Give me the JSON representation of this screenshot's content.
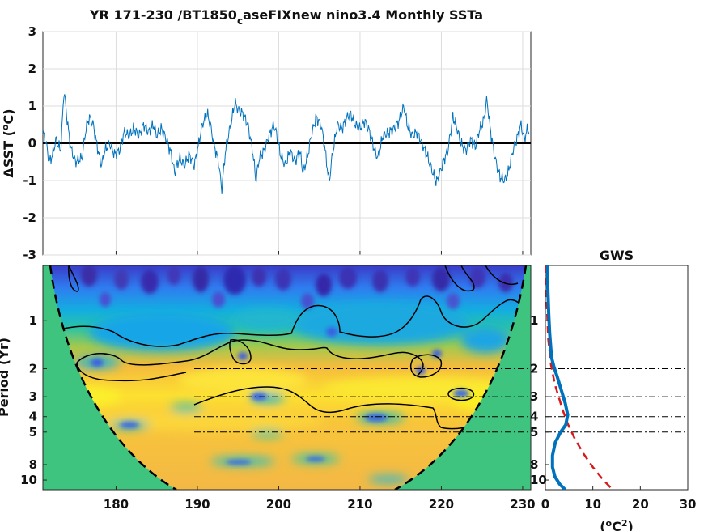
{
  "figure": {
    "title_main": "YR 171-230 /BT1850",
    "title_sub": "c",
    "title_rest": "aseFIXnew nino3.4 Monthly SSTa"
  },
  "chart_data": [
    {
      "type": "line",
      "name": "timeseries",
      "ylabel_main": "ΔSST (",
      "ylabel_sup": "o",
      "ylabel_end": "C)",
      "xlim": [
        171,
        231
      ],
      "ylim": [
        -3,
        3
      ],
      "yticks": [
        "3",
        "2",
        "1",
        "0",
        "-1",
        "-2",
        "-3"
      ],
      "grid": true,
      "line_color": "#0072BD",
      "zero_line_color": "#000000",
      "anchors": [
        [
          171.0,
          0.3
        ],
        [
          171.4,
          0.0
        ],
        [
          171.8,
          -0.5
        ],
        [
          172.2,
          -0.3
        ],
        [
          172.6,
          0.1
        ],
        [
          173.2,
          -0.2
        ],
        [
          173.6,
          1.45
        ],
        [
          174.0,
          0.6
        ],
        [
          174.4,
          -0.1
        ],
        [
          175.0,
          -0.5
        ],
        [
          175.8,
          -0.4
        ],
        [
          176.3,
          0.4
        ],
        [
          176.7,
          0.7
        ],
        [
          177.2,
          0.5
        ],
        [
          177.6,
          0.0
        ],
        [
          178.2,
          -0.6
        ],
        [
          178.6,
          -0.2
        ],
        [
          179.2,
          0.0
        ],
        [
          179.8,
          -0.3
        ],
        [
          180.4,
          -0.2
        ],
        [
          181.0,
          0.3
        ],
        [
          181.6,
          0.2
        ],
        [
          182.2,
          0.4
        ],
        [
          182.8,
          0.2
        ],
        [
          183.4,
          0.5
        ],
        [
          184.0,
          0.3
        ],
        [
          184.6,
          0.5
        ],
        [
          185.0,
          0.2
        ],
        [
          185.6,
          0.4
        ],
        [
          186.2,
          0.1
        ],
        [
          186.8,
          -0.3
        ],
        [
          187.2,
          -0.8
        ],
        [
          187.8,
          -0.4
        ],
        [
          188.4,
          -0.6
        ],
        [
          189.0,
          -0.3
        ],
        [
          189.6,
          -0.6
        ],
        [
          190.0,
          -0.2
        ],
        [
          190.6,
          0.5
        ],
        [
          191.2,
          0.8
        ],
        [
          191.6,
          0.5
        ],
        [
          192.0,
          0.0
        ],
        [
          192.6,
          -0.5
        ],
        [
          193.0,
          -1.25
        ],
        [
          193.4,
          -0.3
        ],
        [
          193.8,
          0.2
        ],
        [
          194.2,
          0.6
        ],
        [
          194.6,
          1.1
        ],
        [
          195.0,
          0.9
        ],
        [
          195.6,
          0.8
        ],
        [
          196.2,
          0.5
        ],
        [
          196.8,
          -0.2
        ],
        [
          197.2,
          -1.0
        ],
        [
          197.6,
          -0.4
        ],
        [
          198.2,
          -0.2
        ],
        [
          198.8,
          0.2
        ],
        [
          199.4,
          0.5
        ],
        [
          199.8,
          0.2
        ],
        [
          200.2,
          -0.3
        ],
        [
          200.8,
          -0.6
        ],
        [
          201.4,
          -0.2
        ],
        [
          202.0,
          -0.5
        ],
        [
          202.6,
          -0.2
        ],
        [
          203.0,
          -0.8
        ],
        [
          203.6,
          -0.3
        ],
        [
          204.0,
          0.2
        ],
        [
          204.6,
          0.7
        ],
        [
          205.2,
          0.5
        ],
        [
          205.6,
          0.0
        ],
        [
          206.2,
          -1.05
        ],
        [
          206.6,
          -0.3
        ],
        [
          207.2,
          0.5
        ],
        [
          207.8,
          0.4
        ],
        [
          208.4,
          0.7
        ],
        [
          208.8,
          0.8
        ],
        [
          209.4,
          0.5
        ],
        [
          210.0,
          0.4
        ],
        [
          210.6,
          0.6
        ],
        [
          211.2,
          0.3
        ],
        [
          211.8,
          -0.2
        ],
        [
          212.2,
          -0.4
        ],
        [
          212.8,
          0.2
        ],
        [
          213.6,
          0.3
        ],
        [
          214.2,
          0.4
        ],
        [
          214.8,
          0.6
        ],
        [
          215.4,
          1.0
        ],
        [
          215.8,
          0.5
        ],
        [
          216.4,
          0.2
        ],
        [
          217.0,
          0.3
        ],
        [
          217.6,
          0.0
        ],
        [
          218.2,
          -0.3
        ],
        [
          218.8,
          -0.7
        ],
        [
          219.4,
          -1.05
        ],
        [
          219.8,
          -0.8
        ],
        [
          220.4,
          -0.4
        ],
        [
          220.8,
          -0.2
        ],
        [
          221.4,
          0.7
        ],
        [
          221.8,
          0.5
        ],
        [
          222.4,
          0.0
        ],
        [
          223.0,
          -0.2
        ],
        [
          223.6,
          0.1
        ],
        [
          224.2,
          -0.1
        ],
        [
          224.6,
          0.3
        ],
        [
          225.2,
          0.6
        ],
        [
          225.6,
          1.2
        ],
        [
          226.0,
          0.4
        ],
        [
          226.6,
          -0.4
        ],
        [
          227.2,
          -0.9
        ],
        [
          227.8,
          -1.0
        ],
        [
          228.2,
          -0.8
        ],
        [
          228.8,
          -0.2
        ],
        [
          229.4,
          0.2
        ],
        [
          229.8,
          0.5
        ],
        [
          230.2,
          0.1
        ],
        [
          230.6,
          0.4
        ],
        [
          230.8,
          0.3
        ]
      ]
    },
    {
      "type": "heatmap",
      "name": "wavelet-power-spectrum",
      "ylabel": "Period (Yr)",
      "xlim": [
        171,
        231
      ],
      "xticks": [
        "180",
        "190",
        "200",
        "210",
        "220",
        "230"
      ],
      "yticks": [
        "1",
        "2",
        "3",
        "4",
        "5",
        "8",
        "10"
      ],
      "yscale": "log",
      "ylim_period": [
        0.45,
        11.5
      ],
      "reference_periods": [
        2,
        3,
        4,
        5
      ],
      "cone_color": "#3EC47F",
      "colormap": "parula"
    },
    {
      "type": "line",
      "name": "global-wavelet-spectrum",
      "title": "GWS",
      "xlim": [
        0,
        30
      ],
      "xticks": [
        "0",
        "10",
        "20",
        "30"
      ],
      "xlabel_main": "(",
      "xlabel_sup_o": "o",
      "xlabel_mid": "C",
      "xlabel_sup_2": "2",
      "xlabel_end": ")",
      "yticks": [
        "1",
        "2",
        "3",
        "4",
        "5",
        "8",
        "10"
      ],
      "reference_periods": [
        2,
        3,
        4,
        5
      ],
      "series": [
        {
          "color": "#0072BD",
          "points": [
            [
              0.5,
              0.45
            ],
            [
              0.5,
              0.6
            ],
            [
              0.7,
              0.9
            ],
            [
              0.9,
              1.2
            ],
            [
              1.3,
              1.7
            ],
            [
              1.8,
              1.95
            ],
            [
              2.5,
              2.25
            ],
            [
              3.3,
              2.7
            ],
            [
              4.2,
              3.3
            ],
            [
              4.7,
              3.9
            ],
            [
              4.3,
              4.5
            ],
            [
              3.2,
              5.0
            ],
            [
              2.1,
              5.8
            ],
            [
              1.5,
              7.0
            ],
            [
              1.5,
              8.3
            ],
            [
              2.0,
              9.5
            ],
            [
              3.0,
              10.6
            ],
            [
              4.2,
              11.5
            ]
          ]
        },
        {
          "color": "#D7191C",
          "dashed": true,
          "points": [
            [
              0.2,
              0.45
            ],
            [
              0.3,
              0.8
            ],
            [
              0.6,
              1.3
            ],
            [
              1.2,
              1.9
            ],
            [
              2.0,
              2.5
            ],
            [
              2.8,
              3.0
            ],
            [
              3.6,
              3.6
            ],
            [
              4.8,
              4.5
            ],
            [
              6.2,
              5.5
            ],
            [
              8.0,
              6.8
            ],
            [
              10.0,
              8.3
            ],
            [
              12.2,
              10.0
            ],
            [
              14.2,
              11.5
            ]
          ]
        }
      ]
    }
  ]
}
